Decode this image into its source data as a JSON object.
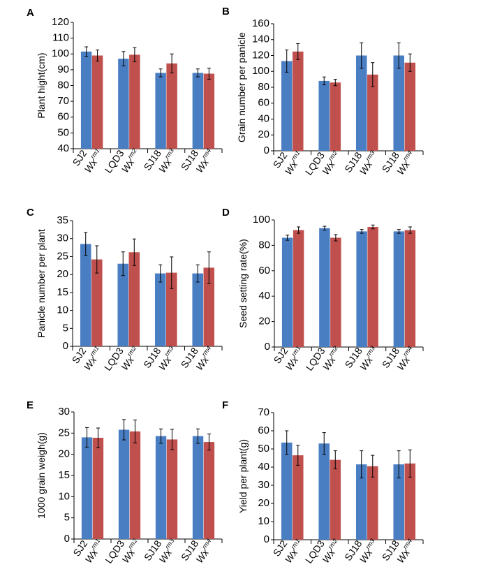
{
  "colors": {
    "series_1": "#4a7ec2",
    "series_2": "#c0504d"
  },
  "chart_data": [
    {
      "panel": "A",
      "type": "bar",
      "ylabel": "Plant hight(cm)",
      "ylim": [
        40,
        120
      ],
      "yticks": [
        40,
        50,
        60,
        70,
        80,
        90,
        100,
        110,
        120
      ],
      "groups": [
        {
          "control": "SJ2",
          "mutant": "Wx",
          "mutant_sup": "rm1"
        },
        {
          "control": "LQD3",
          "mutant": "Wx",
          "mutant_sup": "rm2"
        },
        {
          "control": "SJ18",
          "mutant": "Wx",
          "mutant_sup": "rm3"
        },
        {
          "control": "SJ18",
          "mutant": "Wx",
          "mutant_sup": "rm4"
        }
      ],
      "series": [
        {
          "values": [
            101.5,
            97,
            88,
            88
          ],
          "errors": [
            3,
            4.5,
            2.5,
            2.5
          ]
        },
        {
          "values": [
            99,
            99.5,
            94,
            87.5
          ],
          "errors": [
            3.5,
            4.5,
            6,
            3.5
          ]
        }
      ]
    },
    {
      "panel": "B",
      "type": "bar",
      "ylabel": "Grain number per panicle",
      "ylim": [
        0,
        160
      ],
      "yticks": [
        0,
        20,
        40,
        60,
        80,
        100,
        120,
        140,
        160
      ],
      "groups": [
        {
          "control": "SJ2",
          "mutant": "Wx",
          "mutant_sup": "rm1"
        },
        {
          "control": "LQD3",
          "mutant": "Wx",
          "mutant_sup": "rm2"
        },
        {
          "control": "SJ18",
          "mutant": "Wx",
          "mutant_sup": "rm3"
        },
        {
          "control": "SJ18",
          "mutant": "Wx",
          "mutant_sup": "rm4"
        }
      ],
      "series": [
        {
          "values": [
            113,
            88,
            120,
            120
          ],
          "errors": [
            14,
            5,
            16,
            16
          ]
        },
        {
          "values": [
            125,
            86,
            96,
            111
          ],
          "errors": [
            10,
            4,
            15,
            11
          ]
        }
      ]
    },
    {
      "panel": "C",
      "type": "bar",
      "ylabel": "Panicle number per plant",
      "ylim": [
        0,
        35
      ],
      "yticks": [
        0,
        5,
        10,
        15,
        20,
        25,
        30,
        35
      ],
      "groups": [
        {
          "control": "SJ2",
          "mutant": "Wx",
          "mutant_sup": "rm1"
        },
        {
          "control": "LQD3",
          "mutant": "Wx",
          "mutant_sup": "rm2"
        },
        {
          "control": "SJ18",
          "mutant": "Wx",
          "mutant_sup": "rm3"
        },
        {
          "control": "SJ18",
          "mutant": "Wx",
          "mutant_sup": "rm4"
        }
      ],
      "series": [
        {
          "values": [
            28.5,
            23,
            20.3,
            20.3
          ],
          "errors": [
            3.2,
            3.3,
            2.4,
            2.4
          ]
        },
        {
          "values": [
            24.2,
            26.2,
            20.5,
            21.9
          ],
          "errors": [
            3.8,
            3.7,
            4.4,
            4.4
          ]
        }
      ]
    },
    {
      "panel": "D",
      "type": "bar",
      "ylabel": "Seed setting rate(%)",
      "ylim": [
        0,
        100
      ],
      "yticks": [
        0,
        20,
        40,
        60,
        80,
        100
      ],
      "groups": [
        {
          "control": "SJ2",
          "mutant": "Wx",
          "mutant_sup": "rm1"
        },
        {
          "control": "LQD3",
          "mutant": "Wx",
          "mutant_sup": "rm2"
        },
        {
          "control": "SJ18",
          "mutant": "Wx",
          "mutant_sup": "rm3"
        },
        {
          "control": "SJ18",
          "mutant": "Wx",
          "mutant_sup": "rm4"
        }
      ],
      "series": [
        {
          "values": [
            86,
            93.5,
            91,
            91
          ],
          "errors": [
            2,
            1.5,
            1.5,
            1.5
          ]
        },
        {
          "values": [
            92,
            86,
            94.5,
            92
          ],
          "errors": [
            2.5,
            2.5,
            1.5,
            2.5
          ]
        }
      ]
    },
    {
      "panel": "E",
      "type": "bar",
      "ylabel": "1000 grain weigh(g)",
      "ylim": [
        0,
        30
      ],
      "yticks": [
        0,
        5,
        10,
        15,
        20,
        25,
        30
      ],
      "groups": [
        {
          "control": "SJ2",
          "mutant": "Wx",
          "mutant_sup": "rm1"
        },
        {
          "control": "LQD3",
          "mutant": "Wx",
          "mutant_sup": "rm2"
        },
        {
          "control": "SJ18",
          "mutant": "Wx",
          "mutant_sup": "rm3"
        },
        {
          "control": "SJ18",
          "mutant": "Wx",
          "mutant_sup": "rm4"
        }
      ],
      "series": [
        {
          "values": [
            24,
            25.8,
            24.3,
            24.3
          ],
          "errors": [
            2.3,
            2.4,
            1.7,
            1.7
          ]
        },
        {
          "values": [
            23.9,
            25.4,
            23.5,
            22.9
          ],
          "errors": [
            2.3,
            2.7,
            2.4,
            1.9
          ]
        }
      ]
    },
    {
      "panel": "F",
      "type": "bar",
      "ylabel": "Yield per plant(g)",
      "ylim": [
        0,
        70
      ],
      "yticks": [
        0,
        10,
        20,
        30,
        40,
        50,
        60,
        70
      ],
      "groups": [
        {
          "control": "SJ2",
          "mutant": "Wx",
          "mutant_sup": "rm1"
        },
        {
          "control": "LQD3",
          "mutant": "Wx",
          "mutant_sup": "rm2"
        },
        {
          "control": "SJ18",
          "mutant": "Wx",
          "mutant_sup": "rm3"
        },
        {
          "control": "SJ18",
          "mutant": "Wx",
          "mutant_sup": "rm4"
        }
      ],
      "series": [
        {
          "values": [
            53.5,
            53,
            41.5,
            41.5
          ],
          "errors": [
            6.5,
            6,
            7.5,
            7.5
          ]
        },
        {
          "values": [
            46.5,
            44,
            40.5,
            42
          ],
          "errors": [
            5.5,
            5,
            6,
            7.5
          ]
        }
      ]
    }
  ]
}
